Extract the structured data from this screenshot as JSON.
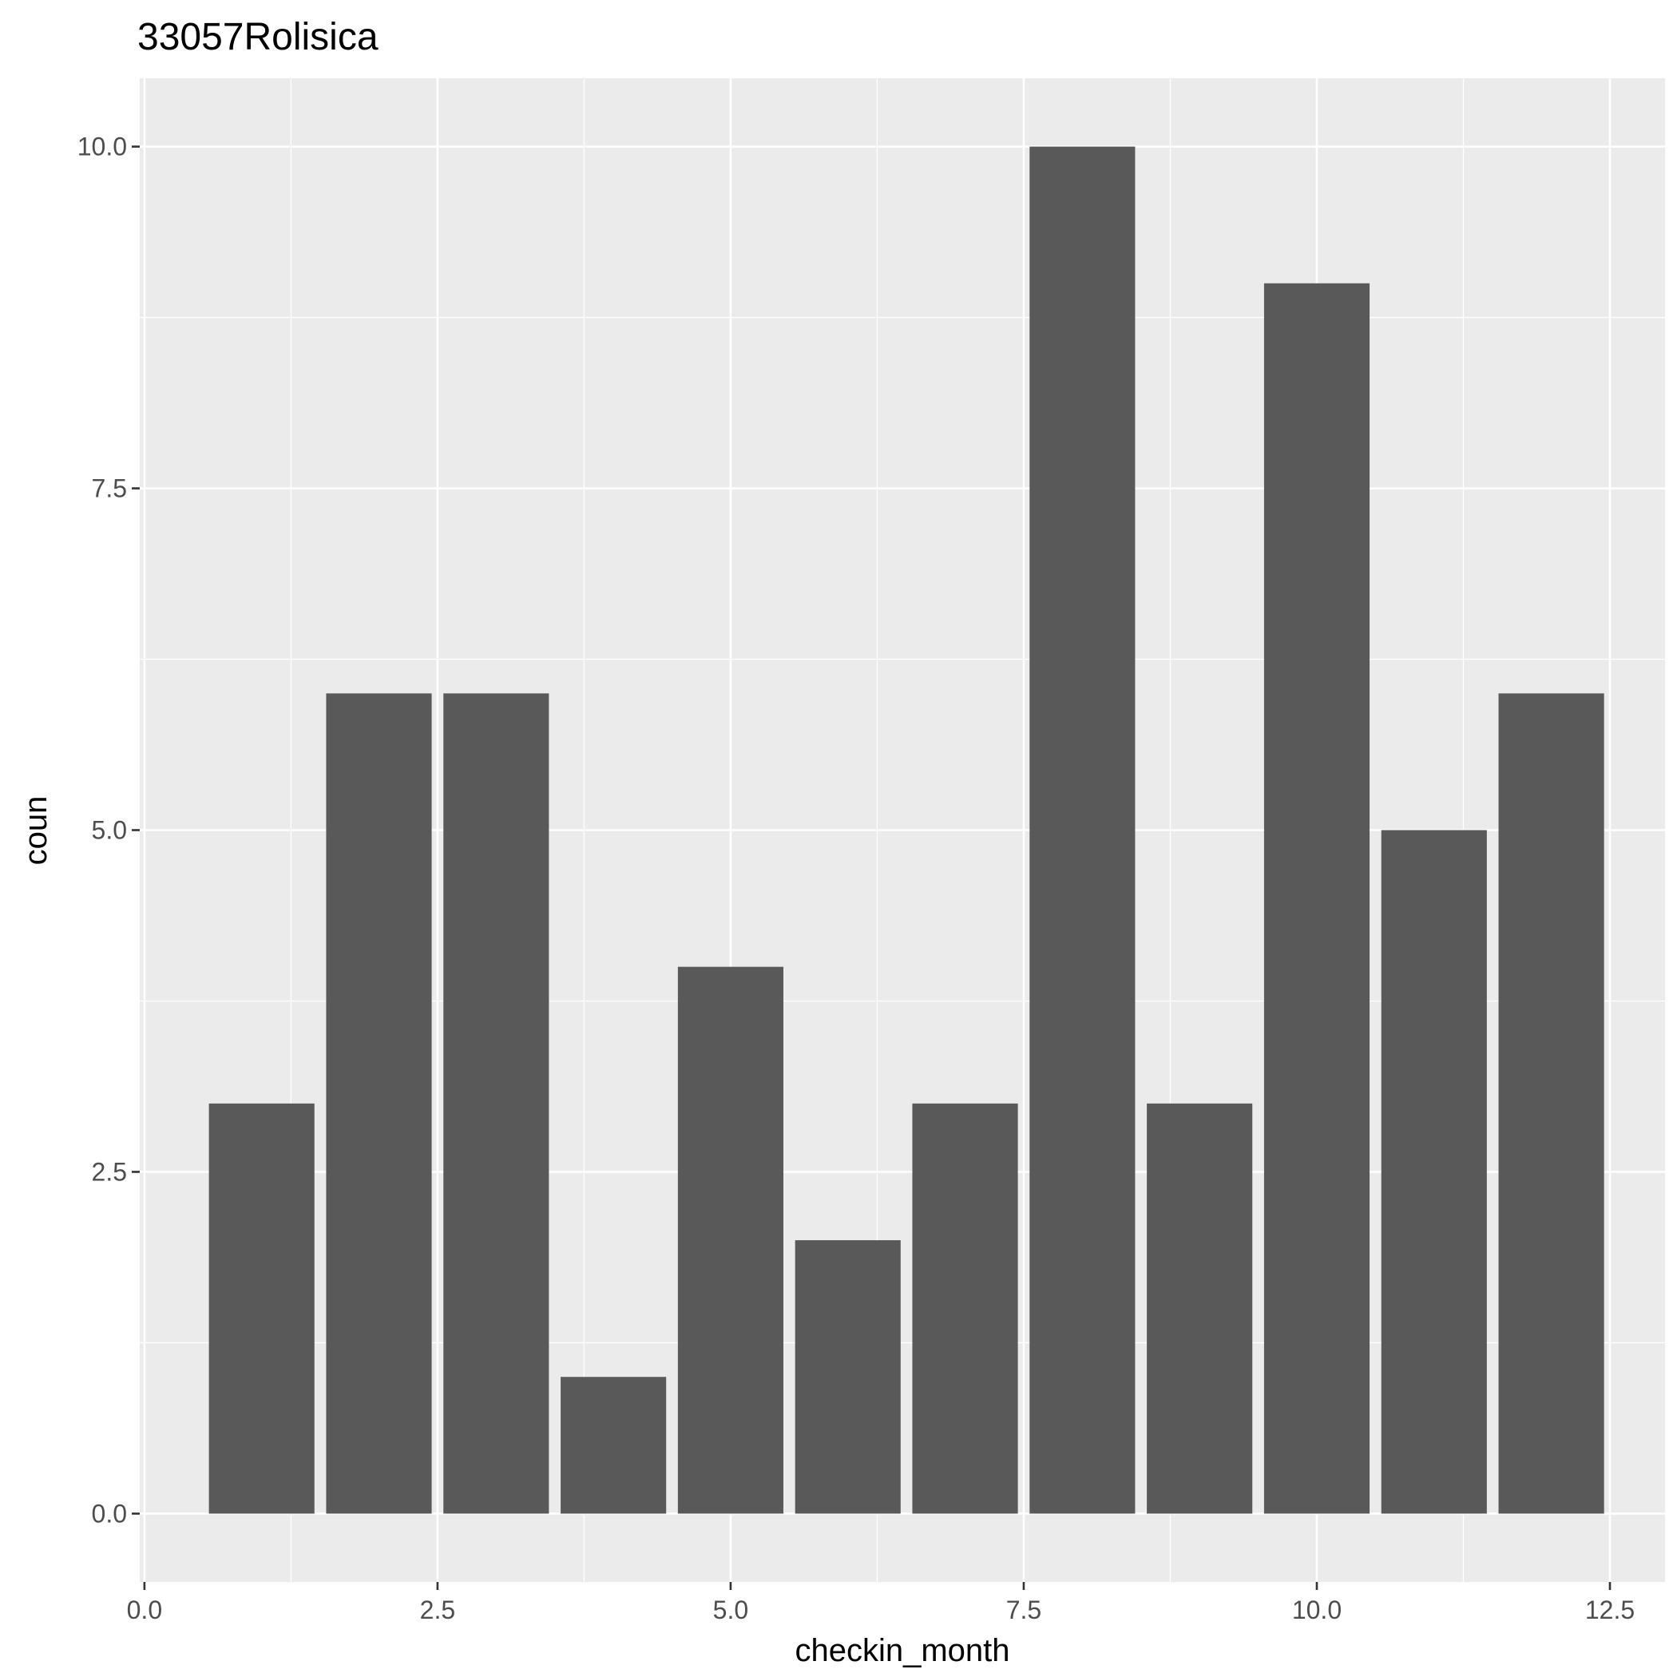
{
  "chart_data": {
    "type": "bar",
    "title": "33057Rolisica",
    "xlabel": "checkin_month",
    "ylabel": "coun",
    "x": [
      1,
      2,
      3,
      4,
      5,
      6,
      7,
      8,
      9,
      10,
      11,
      12
    ],
    "values": [
      3,
      6,
      6,
      1,
      4,
      2,
      3,
      10,
      3,
      9,
      5,
      6
    ],
    "bar_width": 0.9,
    "xlim": [
      -0.04,
      12.97
    ],
    "ylim": [
      -0.5,
      10.5
    ],
    "x_ticks": [
      "0.0",
      "2.5",
      "5.0",
      "7.5",
      "10.0",
      "12.5"
    ],
    "y_ticks": [
      "0.0",
      "2.5",
      "5.0",
      "7.5",
      "10.0"
    ],
    "grid": true,
    "legend": "none",
    "colors": {
      "bar": "#595959",
      "panel_background": "#ebebeb",
      "grid": "#ffffff"
    }
  }
}
